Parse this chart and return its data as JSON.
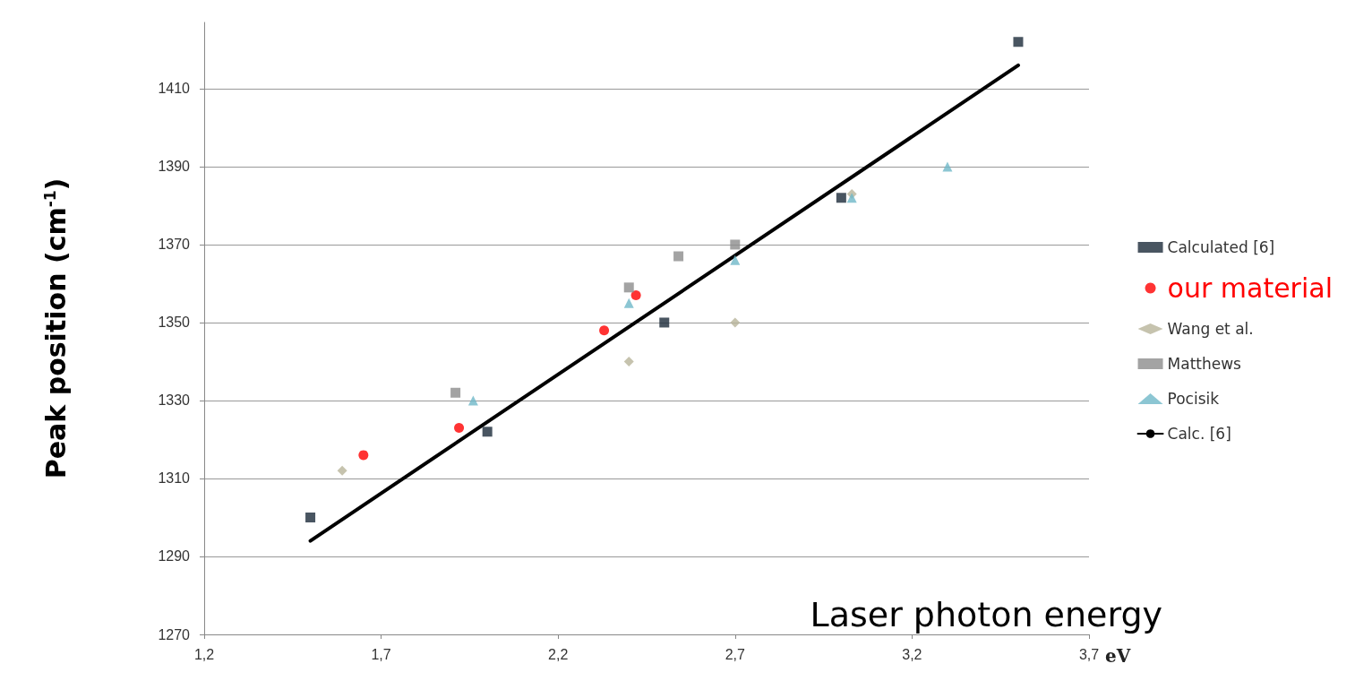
{
  "chart_data": {
    "type": "scatter",
    "xlabel": "eV",
    "ylabel": "Peak position (cm$^{-1}$)",
    "annotations": [
      "Laser photon energy"
    ],
    "xlim": [
      1.2,
      3.7
    ],
    "xticks": [
      {
        "value": 1.2,
        "label": "1,2"
      },
      {
        "value": 1.7,
        "label": "1,7"
      },
      {
        "value": 2.2,
        "label": "2,2"
      },
      {
        "value": 2.7,
        "label": "2,7"
      },
      {
        "value": 3.2,
        "label": "3,2"
      },
      {
        "value": 3.7,
        "label": "3,7"
      }
    ],
    "ylim": [
      1270,
      1427
    ],
    "yticks": [
      1270,
      1290,
      1310,
      1330,
      1350,
      1370,
      1390,
      1410
    ],
    "grid": "y",
    "legend": "right",
    "series": [
      {
        "name": "Calculated [6]",
        "color": "#1c2a3a",
        "marker": "square",
        "x": [
          1.5,
          2.0,
          2.5,
          3.0,
          3.5
        ],
        "values": [
          1300,
          1322,
          1350,
          1382,
          1422
        ]
      },
      {
        "name": "our material",
        "color": "#ff0000",
        "marker": "circle",
        "x": [
          1.65,
          1.92,
          2.33,
          2.42
        ],
        "values": [
          1316,
          1323,
          1348,
          1357
        ]
      },
      {
        "name": "Wang et al.",
        "color": "#b8b49a",
        "marker": "diamond",
        "x": [
          1.59,
          2.4,
          2.7,
          3.03
        ],
        "values": [
          1312,
          1340,
          1350,
          1383
        ]
      },
      {
        "name": "Matthews",
        "color": "#8c8c8c",
        "marker": "square",
        "x": [
          1.91,
          2.4,
          2.54,
          2.7
        ],
        "values": [
          1332,
          1359,
          1367,
          1370
        ]
      },
      {
        "name": "Pocisik",
        "color": "#6fb8c8",
        "marker": "triangle",
        "x": [
          1.96,
          2.4,
          2.7,
          3.03,
          3.3
        ],
        "values": [
          1330,
          1355,
          1366,
          1382,
          1390
        ]
      },
      {
        "name": "Calc. [6]",
        "type": "line",
        "color": "#000000",
        "marker": "none",
        "x": [
          1.5,
          3.5
        ],
        "values": [
          1294,
          1416
        ]
      }
    ]
  }
}
